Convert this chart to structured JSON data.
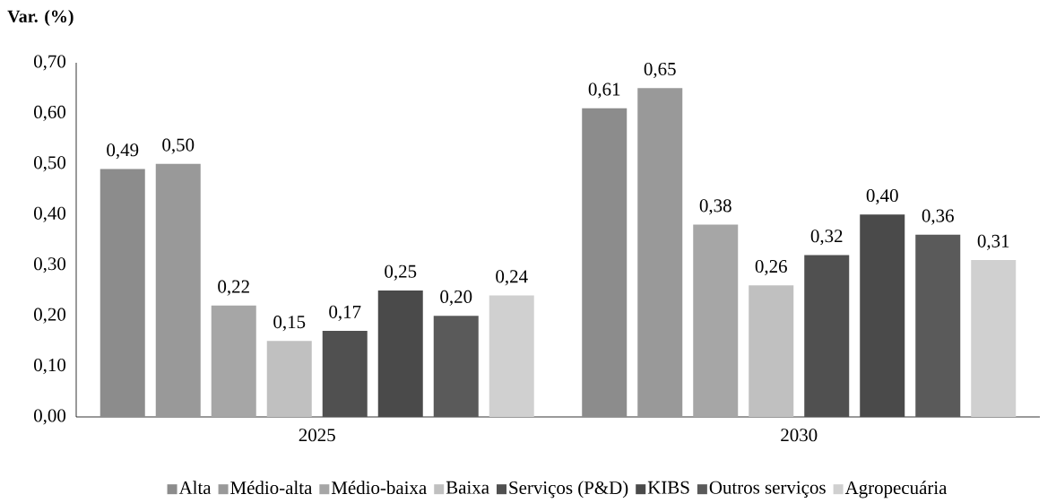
{
  "chart_data": {
    "type": "bar",
    "ylabel": "Var. (%)",
    "categories": [
      "2025",
      "2030"
    ],
    "series": [
      {
        "name": "Alta",
        "color": "#8c8c8c",
        "values": [
          0.49,
          0.61
        ],
        "value_labels": [
          "0,49",
          "0,61"
        ]
      },
      {
        "name": "Médio-alta",
        "color": "#999999",
        "values": [
          0.5,
          0.65
        ],
        "value_labels": [
          "0,50",
          "0,65"
        ]
      },
      {
        "name": "Médio-baixa",
        "color": "#a6a6a6",
        "values": [
          0.22,
          0.38
        ],
        "value_labels": [
          "0,22",
          "0,38"
        ]
      },
      {
        "name": "Baixa",
        "color": "#c0c0c0",
        "values": [
          0.15,
          0.26
        ],
        "value_labels": [
          "0,15",
          "0,26"
        ]
      },
      {
        "name": "Serviços (P&D)",
        "color": "#505050",
        "values": [
          0.17,
          0.32
        ],
        "value_labels": [
          "0,17",
          "0,32"
        ]
      },
      {
        "name": "KIBS",
        "color": "#4a4a4a",
        "values": [
          0.25,
          0.4
        ],
        "value_labels": [
          "0,25",
          "0,40"
        ]
      },
      {
        "name": "Outros serviços",
        "color": "#5a5a5a",
        "values": [
          0.2,
          0.36
        ],
        "value_labels": [
          "0,20",
          "0,36"
        ]
      },
      {
        "name": "Agropecuária",
        "color": "#d0d0d0",
        "values": [
          0.24,
          0.31
        ],
        "value_labels": [
          "0,24",
          "0,31"
        ]
      }
    ],
    "ylim": [
      0,
      0.7
    ],
    "yticks": [
      {
        "value": 0,
        "label": "0,00"
      },
      {
        "value": 0.1,
        "label": "0,10"
      },
      {
        "value": 0.2,
        "label": "0,20"
      },
      {
        "value": 0.3,
        "label": "0,30"
      },
      {
        "value": 0.4,
        "label": "0,40"
      },
      {
        "value": 0.5,
        "label": "0,50"
      },
      {
        "value": 0.6,
        "label": "0,60"
      },
      {
        "value": 0.7,
        "label": "0,70"
      }
    ],
    "legend": "bottom",
    "grid": false
  }
}
